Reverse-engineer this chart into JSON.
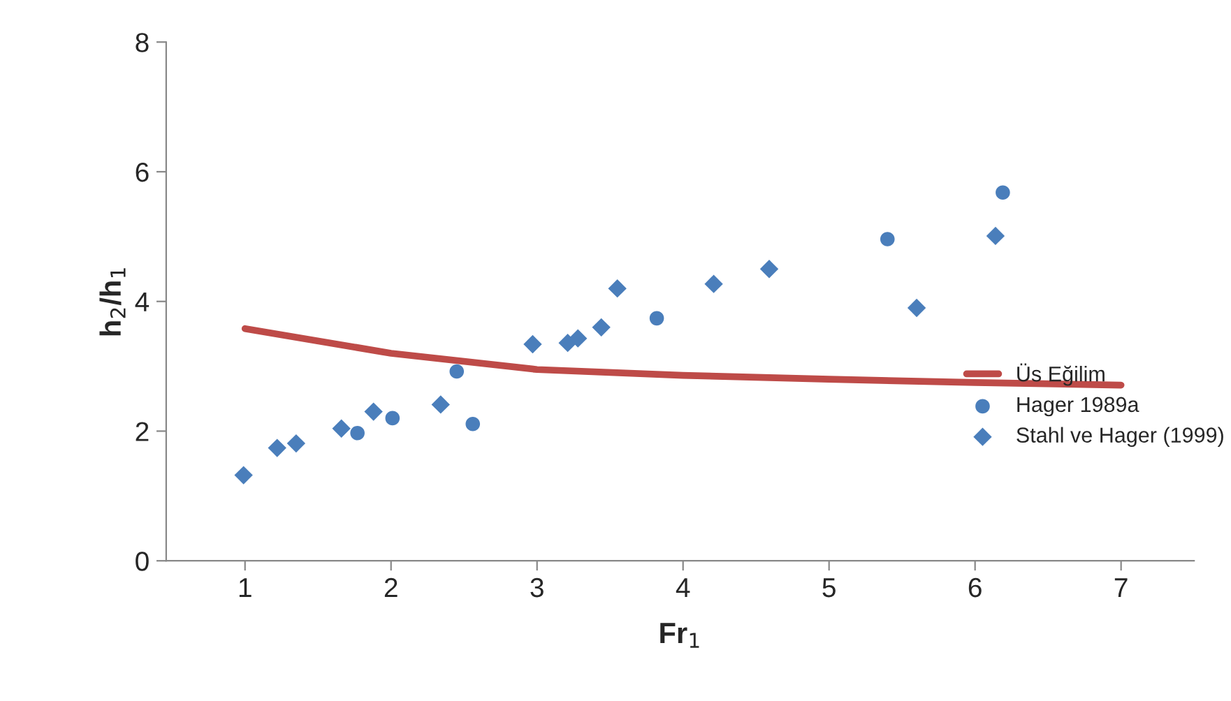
{
  "chart_data": {
    "type": "scatter",
    "xlabel": "Fr$_{1}$",
    "ylabel": "h$_{2}$/h$_{1}$",
    "xlim": [
      0.46,
      7.5
    ],
    "xticks": [
      1,
      2,
      3,
      4,
      5,
      6,
      7
    ],
    "ylim": [
      0,
      8
    ],
    "yticks": [
      0,
      2,
      4,
      6,
      8
    ],
    "grid": false,
    "legend": "right",
    "series": [
      {
        "name": "Üs Eğilim",
        "type": "line",
        "color": "#be4b48",
        "marker": "none",
        "line_style": "solid",
        "x": [
          1,
          2,
          3,
          4,
          5,
          6,
          7
        ],
        "values": [
          3.58,
          3.2,
          2.95,
          2.86,
          2.8,
          2.75,
          2.71
        ]
      },
      {
        "name": "Hager 1989a",
        "color": "#4a7ebb",
        "marker": "circle",
        "x": [
          1.77,
          2.01,
          2.45,
          2.56,
          3.82,
          5.4,
          6.19
        ],
        "values": [
          1.97,
          2.2,
          2.92,
          2.11,
          3.74,
          4.96,
          5.68
        ]
      },
      {
        "name": "Stahl ve Hager (1999)",
        "color": "#4a7ebb",
        "marker": "diamond",
        "x": [
          0.99,
          1.22,
          1.35,
          1.66,
          1.88,
          2.34,
          2.97,
          3.21,
          3.28,
          3.44,
          3.55,
          4.21,
          4.59,
          5.6,
          6.14
        ],
        "values": [
          1.32,
          1.74,
          1.81,
          2.04,
          2.3,
          2.41,
          3.34,
          3.36,
          3.43,
          3.6,
          4.2,
          4.27,
          4.5,
          3.9,
          5.01
        ]
      }
    ]
  }
}
